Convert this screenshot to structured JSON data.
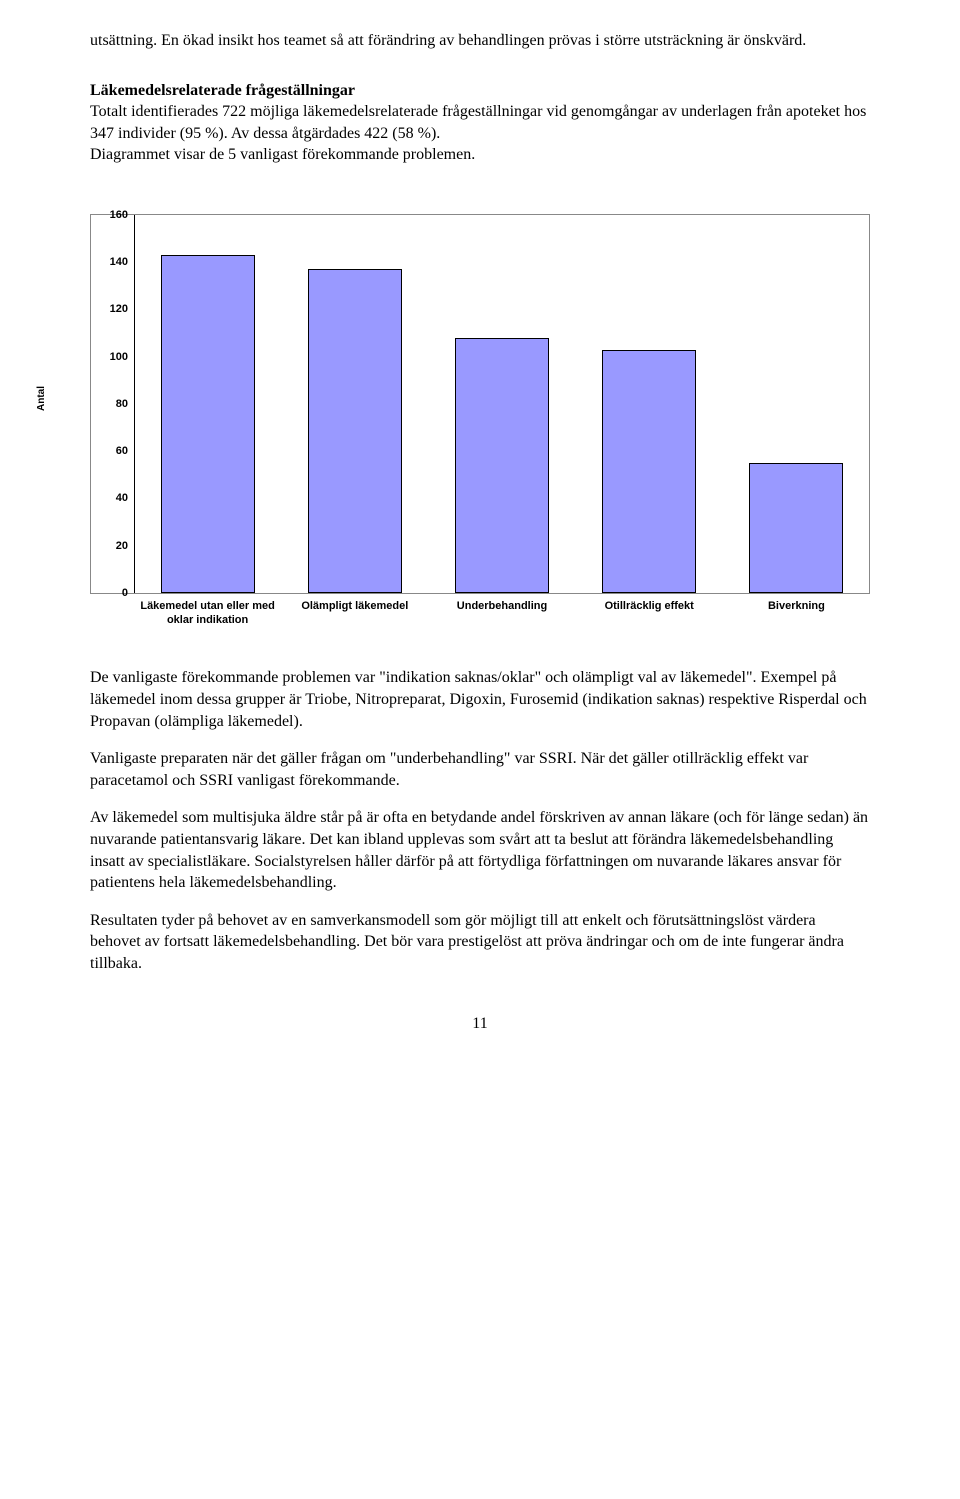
{
  "paragraphs": {
    "intro": "utsättning. En ökad insikt hos teamet så att förändring av behandlingen prövas i större utsträckning är önskvärd.",
    "section_heading": "Läkemedelsrelaterade frågeställningar",
    "section_body_1": "Totalt identifierades 722 möjliga läkemedelsrelaterade frågeställningar vid genomgångar av underlagen från apoteket hos 347 individer (95 %). Av dessa åtgärdades 422 (58 %).",
    "section_body_2": "Diagrammet visar de 5 vanligast förekommande problemen.",
    "p1": "De vanligaste förekommande problemen var \"indikation saknas/oklar\" och olämpligt val av läkemedel\". Exempel på läkemedel inom dessa grupper är Triobe, Nitropreparat, Digoxin, Furosemid (indikation saknas) respektive Risperdal och Propavan (olämpliga läkemedel).",
    "p2": "Vanligaste preparaten när det gäller frågan om \"underbehandling\" var SSRI. När det gäller otillräcklig effekt var paracetamol och SSRI vanligast förekommande.",
    "p3": "Av läkemedel som multisjuka äldre står på är ofta en betydande andel förskriven av annan läkare (och för länge sedan) än nuvarande patientansvarig läkare. Det kan ibland upplevas som svårt att ta beslut att förändra läkemedelsbehandling insatt av specialistläkare. Socialstyrelsen håller därför på att förtydliga författningen om nuvarande läkares ansvar för patientens hela läkemedelsbehandling.",
    "p4": "Resultaten tyder på behovet av en samverkansmodell som gör möjligt till att enkelt och förutsättningslöst värdera behovet av fortsatt läkemedelsbehandling. Det bör vara prestigelöst att pröva ändringar och om de inte fungerar ändra tillbaka."
  },
  "chart": {
    "type": "bar",
    "y_axis_title": "Antal",
    "y_axis_title_fontsize": 10,
    "ylim": [
      0,
      160
    ],
    "ytick_step": 20,
    "y_ticks": [
      0,
      20,
      40,
      60,
      80,
      100,
      120,
      140,
      160
    ],
    "tick_fontsize": 11,
    "x_label_fontsize": 11,
    "categories": [
      "Läkemedel utan eller med oklar indikation",
      "Olämpligt läkemedel",
      "Underbehandling",
      "Otillräcklig effekt",
      "Biverkning"
    ],
    "values": [
      143,
      137,
      108,
      103,
      55
    ],
    "bar_color": "#9999ff",
    "bar_border_color": "#000000",
    "bar_width_pct": 72,
    "plot_border_color": "#888888",
    "axis_color": "#000000",
    "background_color": "#ffffff",
    "tick_font_family": "Arial, sans-serif"
  },
  "page_number": "11"
}
